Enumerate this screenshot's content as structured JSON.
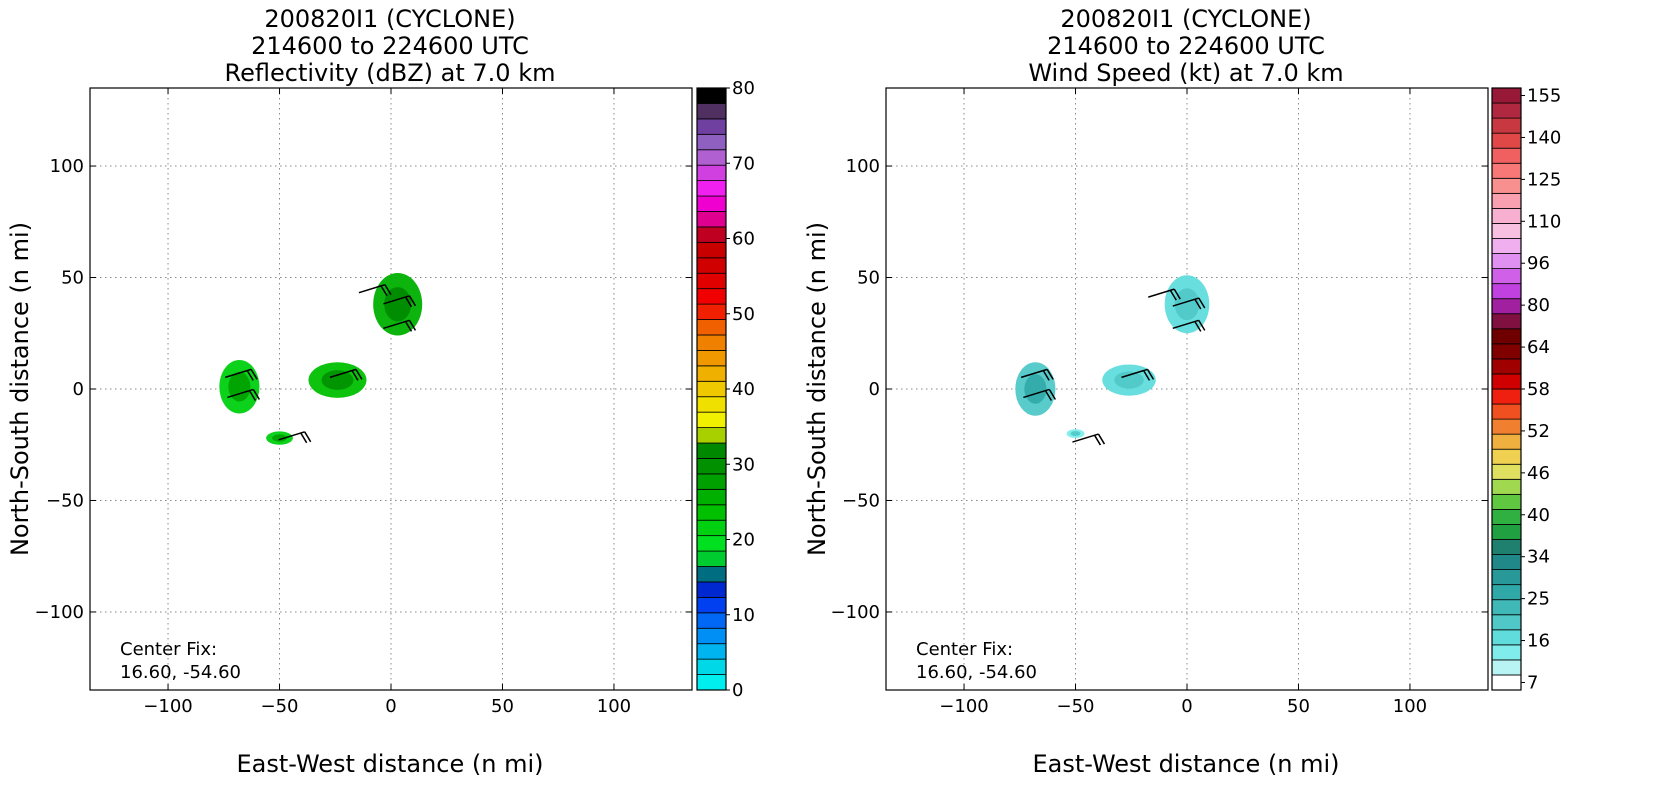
{
  "chart_data": [
    {
      "type": "heatmap",
      "title_lines": [
        "200820I1 (CYCLONE)",
        "214600 to 224600 UTC",
        "Reflectivity (dBZ) at 7.0 km"
      ],
      "xlabel": "East-West distance (n mi)",
      "ylabel": "North-South distance (n mi)",
      "xlim": [
        -135,
        135
      ],
      "ylim": [
        -135,
        135
      ],
      "xticks": [
        -100,
        -50,
        0,
        50,
        100
      ],
      "yticks": [
        -100,
        -50,
        0,
        50,
        100
      ],
      "grid": true,
      "center_fix_label": "Center Fix:",
      "center_fix_value": "16.60, -54.60",
      "colorbar": {
        "label_values": [
          "0",
          "10",
          "20",
          "30",
          "40",
          "50",
          "60",
          "70",
          "80"
        ],
        "label_levels": [
          0,
          10,
          20,
          30,
          40,
          50,
          60,
          70,
          80
        ],
        "vmin": 0,
        "vmax": 80,
        "colors": [
          "#00eeee",
          "#00d8e8",
          "#00b4f0",
          "#0090f5",
          "#0068f5",
          "#0040f0",
          "#0028d0",
          "#006e80",
          "#00cc30",
          "#00e020",
          "#00d010",
          "#00c000",
          "#00b000",
          "#00a000",
          "#009000",
          "#008800",
          "#a8d000",
          "#f0f000",
          "#f0e000",
          "#f0c800",
          "#f0b000",
          "#f09800",
          "#f08000",
          "#f06000",
          "#f02000",
          "#f00000",
          "#e00000",
          "#d00000",
          "#c80000",
          "#c00020",
          "#e00090",
          "#f000d0",
          "#f020f0",
          "#d040e0",
          "#b060d0",
          "#9060c0",
          "#7040a0",
          "#503060",
          "#000000"
        ]
      },
      "regions": [
        {
          "x": 3,
          "y": 38,
          "rx": 11,
          "ry": 14,
          "value": 25
        },
        {
          "x": -24,
          "y": 4,
          "rx": 13,
          "ry": 8,
          "value": 24
        },
        {
          "x": -68,
          "y": 1,
          "rx": 9,
          "ry": 12,
          "value": 22
        },
        {
          "x": -50,
          "y": -22,
          "rx": 6,
          "ry": 3,
          "value": 21
        }
      ],
      "wind_barbs": [
        {
          "x": -69,
          "y": 7
        },
        {
          "x": -68,
          "y": -2
        },
        {
          "x": -22,
          "y": 7
        },
        {
          "x": -45,
          "y": -21
        },
        {
          "x": 2,
          "y": 40
        },
        {
          "x": 2,
          "y": 29
        },
        {
          "x": -9,
          "y": 45
        }
      ]
    },
    {
      "type": "heatmap",
      "title_lines": [
        "200820I1 (CYCLONE)",
        "214600 to 224600 UTC",
        "Wind Speed (kt) at 7.0 km"
      ],
      "xlabel": "East-West distance (n mi)",
      "ylabel": "North-South distance (n mi)",
      "xlim": [
        -135,
        135
      ],
      "ylim": [
        -135,
        135
      ],
      "xticks": [
        -100,
        -50,
        0,
        50,
        100
      ],
      "yticks": [
        -100,
        -50,
        0,
        50,
        100
      ],
      "grid": true,
      "center_fix_label": "Center Fix:",
      "center_fix_value": "16.60, -54.60",
      "colorbar": {
        "label_values": [
          "7",
          "16",
          "25",
          "34",
          "40",
          "46",
          "52",
          "58",
          "64",
          "80",
          "96",
          "110",
          "125",
          "140",
          "155"
        ],
        "label_levels": [
          7,
          16,
          25,
          34,
          40,
          46,
          52,
          58,
          64,
          80,
          96,
          110,
          125,
          140,
          155
        ],
        "colors": [
          "#ffffff",
          "#b8f4f4",
          "#80ecec",
          "#60dcdc",
          "#50c8c8",
          "#40b8b8",
          "#30a8a8",
          "#289898",
          "#208888",
          "#208070",
          "#20a040",
          "#30b040",
          "#60c840",
          "#a0d850",
          "#e0e060",
          "#f0d050",
          "#f0b040",
          "#f08030",
          "#f05020",
          "#f02010",
          "#d00000",
          "#a00000",
          "#800000",
          "#700000",
          "#801040",
          "#a020a0",
          "#c040e0",
          "#d060e8",
          "#e090f0",
          "#f0b0f0",
          "#f8c0e0",
          "#f8b0d0",
          "#f8a0b0",
          "#f89090",
          "#f87878",
          "#f06060",
          "#e04848",
          "#c83840",
          "#b02840",
          "#981838"
        ]
      },
      "regions": [
        {
          "x": 0,
          "y": 38,
          "rx": 10,
          "ry": 13,
          "value": 18
        },
        {
          "x": -26,
          "y": 4,
          "rx": 12,
          "ry": 7,
          "value": 18
        },
        {
          "x": -68,
          "y": 0,
          "rx": 9,
          "ry": 12,
          "value": 22
        },
        {
          "x": -50,
          "y": -20,
          "rx": 4,
          "ry": 2,
          "value": 16
        }
      ],
      "wind_barbs": [
        {
          "x": -69,
          "y": 7
        },
        {
          "x": -68,
          "y": -2
        },
        {
          "x": -24,
          "y": 7
        },
        {
          "x": -46,
          "y": -22
        },
        {
          "x": -1,
          "y": 39
        },
        {
          "x": -1,
          "y": 29
        },
        {
          "x": -12,
          "y": 43
        }
      ]
    }
  ]
}
